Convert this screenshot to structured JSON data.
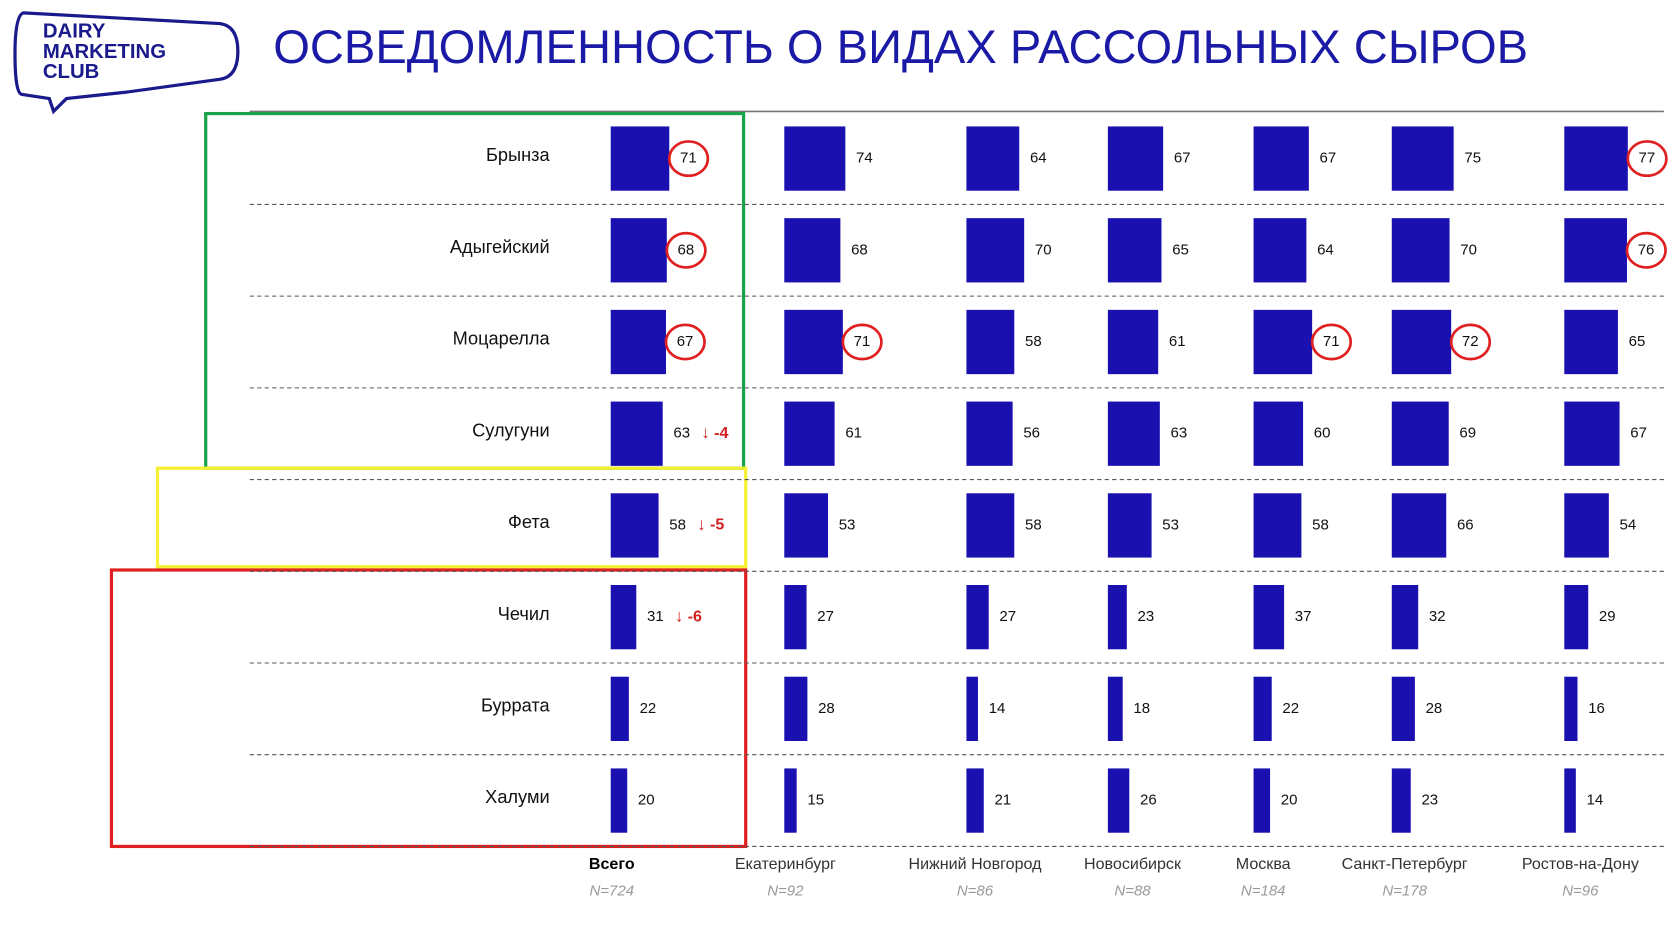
{
  "logo": [
    "DAIRY",
    "MARKETING",
    "CLUB"
  ],
  "chart_data": {
    "type": "bar",
    "title": "ОСВЕДОМЛЕННОСТЬ О ВИДАХ РАССОЛЬНЫХ СЫРОВ",
    "categories": [
      "Брынза",
      "Адыгейский",
      "Моцарелла",
      "Сулугуни",
      "Фета",
      "Чечил",
      "Буррата",
      "Халуми"
    ],
    "color": "#1a10b0",
    "series": [
      {
        "name": "Всего",
        "n": "N=724",
        "values": [
          71,
          68,
          67,
          63,
          58,
          31,
          22,
          20
        ],
        "circled": [
          true,
          true,
          true,
          false,
          false,
          false,
          false,
          false
        ],
        "changes": [
          null,
          null,
          null,
          -4,
          -5,
          -6,
          null,
          null
        ]
      },
      {
        "name": "Екатеринбург",
        "n": "N=92",
        "values": [
          74,
          68,
          71,
          61,
          53,
          27,
          28,
          15
        ],
        "circled": [
          false,
          false,
          true,
          false,
          false,
          false,
          false,
          false
        ]
      },
      {
        "name": "Нижний Новгород",
        "n": "N=86",
        "values": [
          64,
          70,
          58,
          56,
          58,
          27,
          14,
          21
        ],
        "circled": [
          false,
          false,
          false,
          false,
          false,
          false,
          false,
          false
        ]
      },
      {
        "name": "Новосибирск",
        "n": "N=88",
        "values": [
          67,
          65,
          61,
          63,
          53,
          23,
          18,
          26
        ],
        "circled": [
          false,
          false,
          false,
          false,
          false,
          false,
          false,
          false
        ]
      },
      {
        "name": "Москва",
        "n": "N=184",
        "values": [
          67,
          64,
          71,
          60,
          58,
          37,
          22,
          20
        ],
        "circled": [
          false,
          false,
          true,
          false,
          false,
          false,
          false,
          false
        ]
      },
      {
        "name": "Санкт-Петербург",
        "n": "N=178",
        "values": [
          75,
          70,
          72,
          69,
          66,
          32,
          28,
          23
        ],
        "circled": [
          false,
          false,
          true,
          false,
          false,
          false,
          false,
          false
        ]
      },
      {
        "name": "Ростов-на-Дону",
        "n": "N=96",
        "values": [
          77,
          76,
          65,
          67,
          54,
          29,
          16,
          14
        ],
        "circled": [
          true,
          true,
          false,
          false,
          false,
          false,
          false,
          false
        ]
      }
    ]
  }
}
